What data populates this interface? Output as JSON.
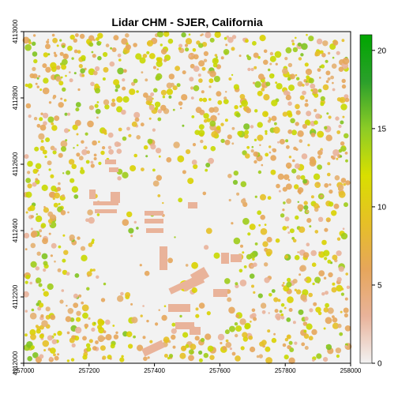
{
  "chart_data": {
    "type": "heatmap",
    "title": "Lidar CHM - SJER, California",
    "xlabel": "",
    "ylabel": "",
    "xlim": [
      257000,
      258000
    ],
    "ylim": [
      4112000,
      4113000
    ],
    "x_ticks": [
      257000,
      257200,
      257400,
      257600,
      257800,
      258000
    ],
    "y_ticks": [
      4112000,
      4112200,
      4112400,
      4112600,
      4112800,
      4113000
    ],
    "colorbar": {
      "range": [
        0,
        21
      ],
      "ticks": [
        0,
        5,
        10,
        15,
        20
      ],
      "colors": [
        "#f2f2f2",
        "#e9b39a",
        "#e6a65b",
        "#e6c026",
        "#d9df00",
        "#8ccc26",
        "#2ba02b",
        "#00a600"
      ]
    },
    "background_color": "#f2f2f2",
    "grid": false,
    "legend": "right"
  }
}
